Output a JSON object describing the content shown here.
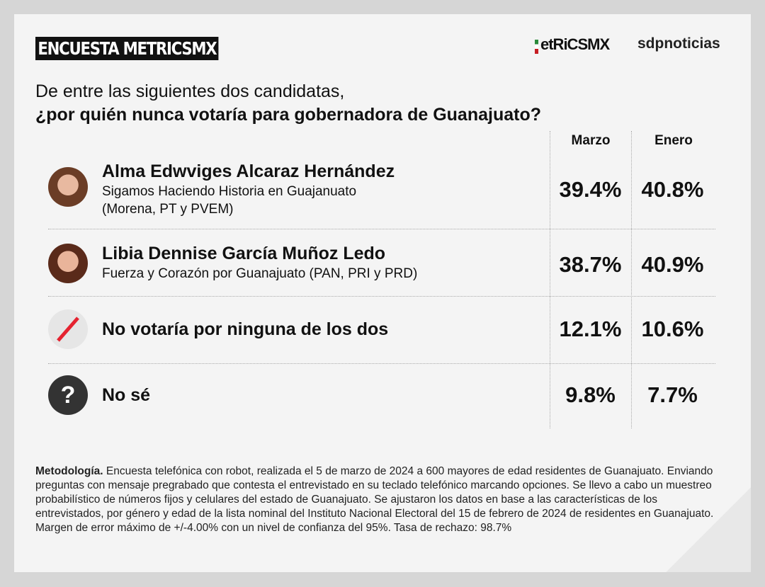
{
  "header": {
    "badge": "ENCUESTA METRICSMX",
    "logo_metrics": "etRiCSMX",
    "logo_sdp": "sdpnoticias"
  },
  "question": {
    "line1": "De entre las siguientes dos candidatas,",
    "line2": "¿por quién nunca votaría para gobernadora de Guanajuato?"
  },
  "columns": [
    "Marzo",
    "Enero"
  ],
  "rows": [
    {
      "name": "Alma Edwviges Alcaraz Hernández",
      "sub1": "Sigamos Haciendo Historia en Guajanuato",
      "sub2": "(Morena, PT y PVEM)",
      "marzo": "39.4%",
      "enero": "40.8%",
      "icon": "avatar"
    },
    {
      "name": "Libia Dennise García Muñoz Ledo",
      "sub1": "Fuerza y Corazón por Guanajuato (PAN, PRI y PRD)",
      "marzo": "38.7%",
      "enero": "40.9%",
      "icon": "avatar"
    },
    {
      "name": "No votaría por ninguna de los dos",
      "marzo": "12.1%",
      "enero": "10.6%",
      "icon": "slash-icon"
    },
    {
      "name": "No sé",
      "marzo": "9.8%",
      "enero": "7.7%",
      "icon": "question-icon"
    }
  ],
  "methodology": {
    "label": "Metodología.",
    "text": " Encuesta telefónica con robot, realizada el 5 de marzo de 2024 a 600 mayores de edad residentes de Guanajuato. Enviando preguntas con mensaje pregrabado que contesta el entrevistado en su teclado telefónico marcando opciones. Se llevo a cabo un muestreo probabilístico de números fijos y celulares del estado de Guanajuato. Se ajustaron los datos en base a las características de los entrevistados, por género y edad de la lista nominal del Instituto Nacional Electoral del 15 de febrero de 2024 de residentes en Guanajuato. Margen de error máximo de +/-4.00% con un nivel de confianza del 95%. Tasa de rechazo: 98.7%"
  },
  "colors": {
    "slash": "#e52330",
    "dark": "#333333"
  }
}
